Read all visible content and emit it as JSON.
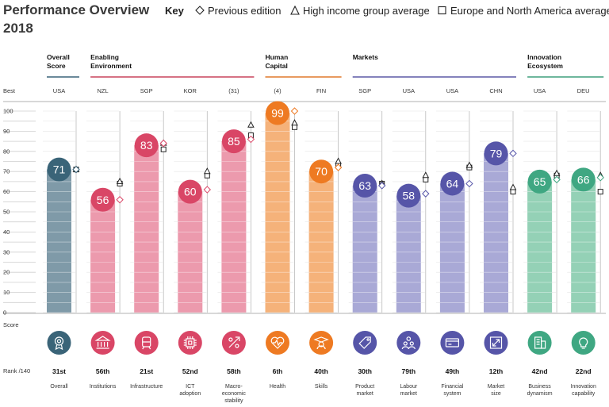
{
  "title": [
    "Performance Overview",
    "2018"
  ],
  "key": {
    "title": "Key",
    "items": [
      {
        "symbol": "diamond",
        "label": "Previous edition"
      },
      {
        "symbol": "triangle",
        "label": "High income group average"
      },
      {
        "symbol": "square",
        "label": "Europe and North America average"
      }
    ]
  },
  "labels": {
    "best": "Best",
    "score": "Score",
    "rank": "Rank /140"
  },
  "groups": [
    {
      "name": [
        "Overall",
        "Score"
      ],
      "color": "#3a6478",
      "start": 0,
      "end": 0
    },
    {
      "name": [
        "Enabling",
        "Environment"
      ],
      "color": "#c8435b",
      "start": 1,
      "end": 4
    },
    {
      "name": [
        "Human",
        "Capital"
      ],
      "color": "#e0782b",
      "start": 5,
      "end": 6
    },
    {
      "name": [
        "Markets"
      ],
      "color": "#5b59a5",
      "start": 7,
      "end": 10
    },
    {
      "name": [
        "Innovation",
        "Ecosystem"
      ],
      "color": "#3f9f7c",
      "start": 11,
      "end": 12
    }
  ],
  "chart_data": {
    "type": "bar",
    "ylim": [
      0,
      100
    ],
    "yticks": [
      0,
      10,
      20,
      30,
      40,
      50,
      60,
      70,
      80,
      90,
      100
    ],
    "categories": [
      "Overall",
      "Institutions",
      "Infrastructure",
      "ICT adoption",
      "Macro-economic stability",
      "Health",
      "Skills",
      "Product market",
      "Labour market",
      "Financial system",
      "Market size",
      "Business dynamism",
      "Innovation capability"
    ],
    "series": [
      {
        "values": [
          71,
          56,
          83,
          60,
          85,
          99,
          70,
          63,
          58,
          64,
          79,
          65,
          66
        ]
      }
    ],
    "previous_edition": [
      71,
      56,
      84,
      61,
      86,
      100,
      72,
      63,
      59,
      64,
      79,
      66,
      67
    ],
    "high_income_average": [
      71,
      65,
      84,
      70,
      93,
      94,
      75,
      64,
      68,
      73,
      62,
      69,
      68
    ],
    "europe_north_america_average": [
      71,
      64,
      81,
      68,
      88,
      92,
      73,
      64,
      66,
      72,
      60,
      68,
      60
    ],
    "pillars": [
      {
        "best": "USA",
        "label": [
          "Overall"
        ],
        "rank": "31st",
        "color": "#3a6478",
        "bar": "#7f9aa8",
        "icon": "award-icon"
      },
      {
        "best": "NZL",
        "label": [
          "Institutions"
        ],
        "rank": "56th",
        "color": "#d94666",
        "bar": "#ec9aad",
        "icon": "institution-icon"
      },
      {
        "best": "SGP",
        "label": [
          "Infrastructure"
        ],
        "rank": "21st",
        "color": "#d94666",
        "bar": "#ec9aad",
        "icon": "train-icon"
      },
      {
        "best": "KOR",
        "label": [
          "ICT",
          "adoption"
        ],
        "rank": "52nd",
        "color": "#d94666",
        "bar": "#ec9aad",
        "icon": "chip-icon"
      },
      {
        "best": "(31)",
        "label": [
          "Macro-",
          "economic",
          "stability"
        ],
        "rank": "58th",
        "color": "#d94666",
        "bar": "#ec9aad",
        "icon": "percent-icon"
      },
      {
        "best": "(4)",
        "label": [
          "Health"
        ],
        "rank": "6th",
        "color": "#ee7a22",
        "bar": "#f5b27a",
        "icon": "heart-icon"
      },
      {
        "best": "FIN",
        "label": [
          "Skills"
        ],
        "rank": "40th",
        "color": "#ee7a22",
        "bar": "#f5b27a",
        "icon": "graduate-icon"
      },
      {
        "best": "SGP",
        "label": [
          "Product",
          "market"
        ],
        "rank": "30th",
        "color": "#5655a8",
        "bar": "#a9a9d6",
        "icon": "tag-icon"
      },
      {
        "best": "USA",
        "label": [
          "Labour",
          "market"
        ],
        "rank": "79th",
        "color": "#5655a8",
        "bar": "#a9a9d6",
        "icon": "people-icon"
      },
      {
        "best": "USA",
        "label": [
          "Financial",
          "system"
        ],
        "rank": "49th",
        "color": "#5655a8",
        "bar": "#a9a9d6",
        "icon": "card-icon"
      },
      {
        "best": "CHN",
        "label": [
          "Market",
          "size"
        ],
        "rank": "12th",
        "color": "#5655a8",
        "bar": "#a9a9d6",
        "icon": "expand-icon"
      },
      {
        "best": "USA",
        "label": [
          "Business",
          "dynamism"
        ],
        "rank": "42nd",
        "color": "#3fa782",
        "bar": "#94d1b6",
        "icon": "building-icon"
      },
      {
        "best": "DEU",
        "label": [
          "Innovation",
          "capability"
        ],
        "rank": "22nd",
        "color": "#3fa782",
        "bar": "#94d1b6",
        "icon": "bulb-icon"
      }
    ]
  }
}
